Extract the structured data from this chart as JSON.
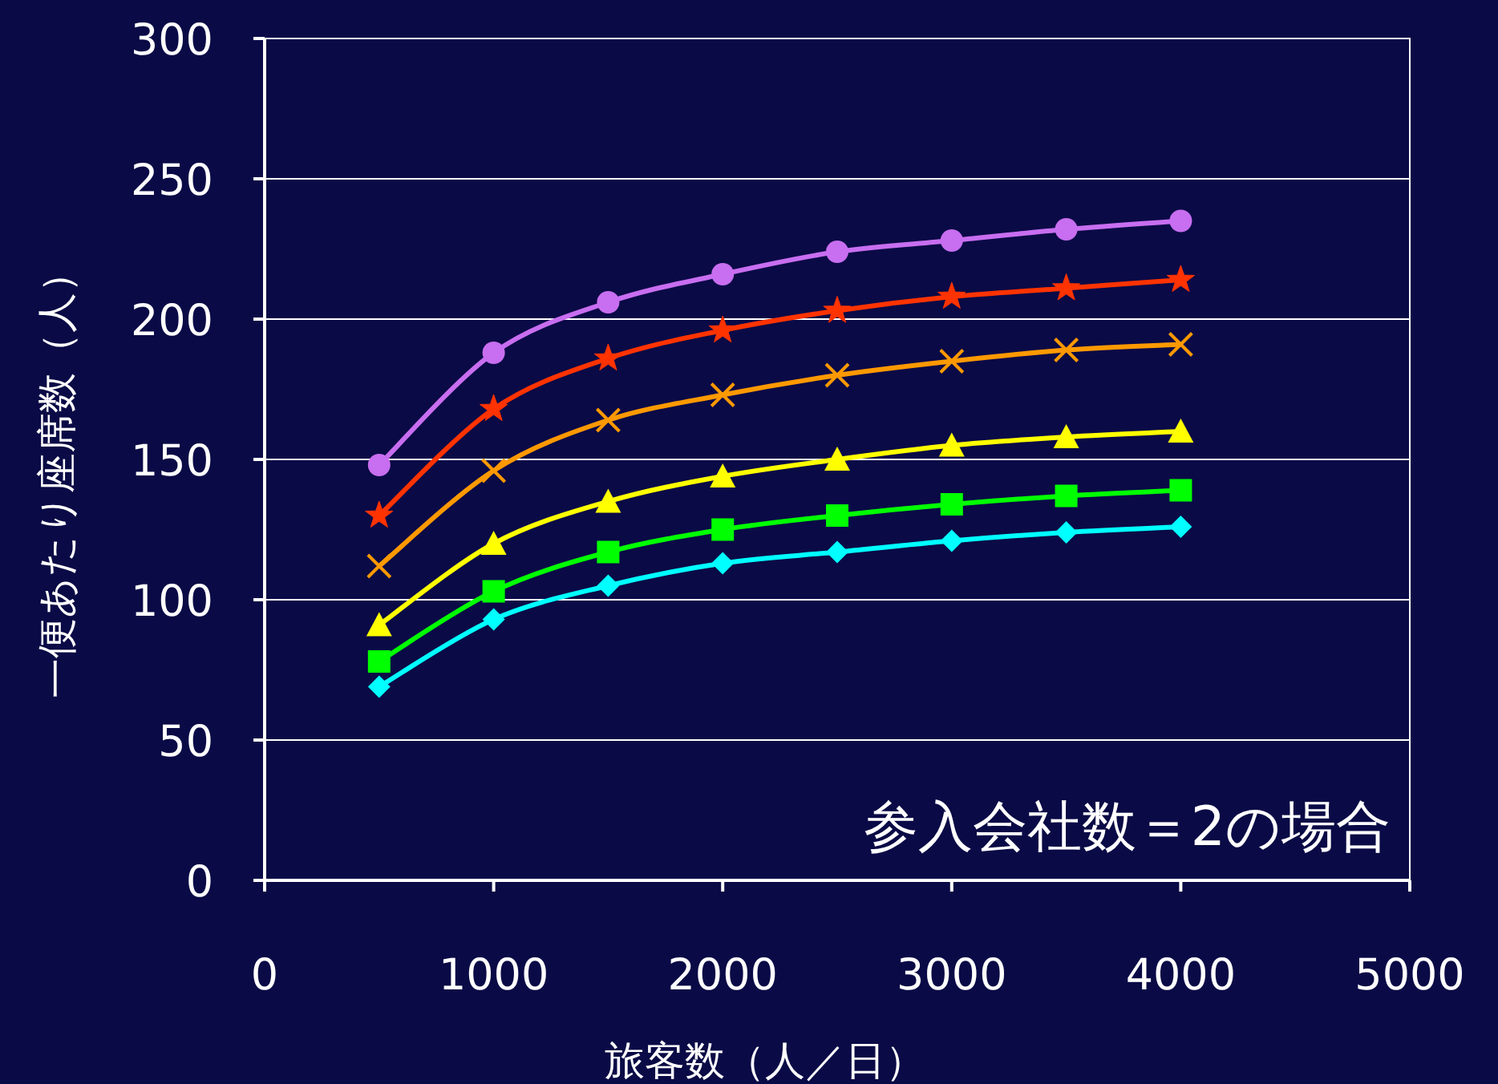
{
  "chart_data": {
    "type": "line",
    "xlabel": "旅客数（人／日）",
    "ylabel": "一便あたり座席数（人）",
    "annotations": [
      "参入会社数＝2の場合"
    ],
    "x": [
      500,
      1000,
      1500,
      2000,
      2500,
      3000,
      3500,
      4000
    ],
    "xlim": [
      0,
      5000
    ],
    "xticks": [
      0,
      1000,
      2000,
      3000,
      4000,
      5000
    ],
    "ylim": [
      0,
      300
    ],
    "yticks": [
      0,
      50,
      100,
      150,
      200,
      250,
      300
    ],
    "grid": "y",
    "line_style": "solid",
    "series": [
      {
        "color": "#c86ef0",
        "marker": "circle",
        "values": [
          148,
          188,
          206,
          216,
          224,
          228,
          232,
          235
        ]
      },
      {
        "color": "#ff3300",
        "marker": "star",
        "values": [
          130,
          168,
          186,
          196,
          203,
          208,
          211,
          214
        ]
      },
      {
        "color": "#ff9900",
        "marker": "cross",
        "values": [
          112,
          146,
          164,
          173,
          180,
          185,
          189,
          191
        ]
      },
      {
        "color": "#ffff00",
        "marker": "triangle",
        "values": [
          91,
          120,
          135,
          144,
          150,
          155,
          158,
          160
        ]
      },
      {
        "color": "#00ff00",
        "marker": "square",
        "values": [
          78,
          103,
          117,
          125,
          130,
          134,
          137,
          139
        ]
      },
      {
        "color": "#00ffff",
        "marker": "diamond",
        "values": [
          69,
          93,
          105,
          113,
          117,
          121,
          124,
          126
        ]
      }
    ]
  }
}
